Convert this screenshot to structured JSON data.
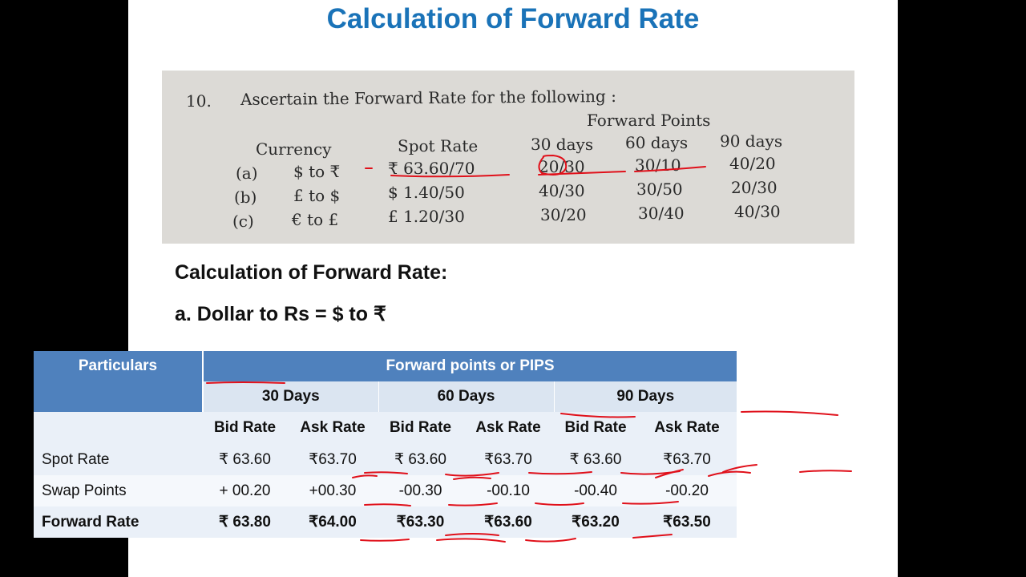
{
  "title": "Calculation of Forward Rate",
  "question": {
    "number": "10.",
    "prompt": "Ascertain the Forward Rate for the following :",
    "forward_points_label": "Forward Points",
    "columns": [
      "Currency",
      "Spot Rate",
      "30 days",
      "60 days",
      "90 days"
    ],
    "rows": [
      {
        "id": "(a)",
        "currency": "$ to ₹",
        "spot": "₹ 63.60/70",
        "d30": "20/30",
        "d60": "30/10",
        "d90": "40/20"
      },
      {
        "id": "(b)",
        "currency": "£ to $",
        "spot": "$ 1.40/50",
        "d30": "40/30",
        "d60": "30/50",
        "d90": "20/30"
      },
      {
        "id": "(c)",
        "currency": "€ to £",
        "spot": "£ 1.20/30",
        "d30": "30/20",
        "d60": "30/40",
        "d90": "40/30"
      }
    ]
  },
  "heading": "Calculation of Forward Rate:",
  "subheading": "a. Dollar to Rs = $ to ₹",
  "table": {
    "particulars": "Particulars",
    "group_header": "Forward points or PIPS",
    "periods": [
      "30 Days",
      "60 Days",
      "90 Days"
    ],
    "bid": "Bid Rate",
    "ask": "Ask Rate",
    "rows": [
      {
        "label": "Spot Rate",
        "cells": [
          "₹ 63.60",
          "₹63.70",
          "₹ 63.60",
          "₹63.70",
          "₹ 63.60",
          "₹63.70"
        ]
      },
      {
        "label": "Swap Points",
        "cells": [
          "+ 00.20",
          "+00.30",
          "-00.30",
          "-00.10",
          "-00.40",
          "-00.20"
        ]
      },
      {
        "label": "Forward Rate",
        "cells": [
          "₹ 63.80",
          "₹64.00",
          "₹63.30",
          "₹63.60",
          "₹63.20",
          "₹63.50"
        ]
      }
    ]
  },
  "colors": {
    "title": "#1a73b8",
    "header": "#4f81bd",
    "annotation": "#e0101a"
  }
}
